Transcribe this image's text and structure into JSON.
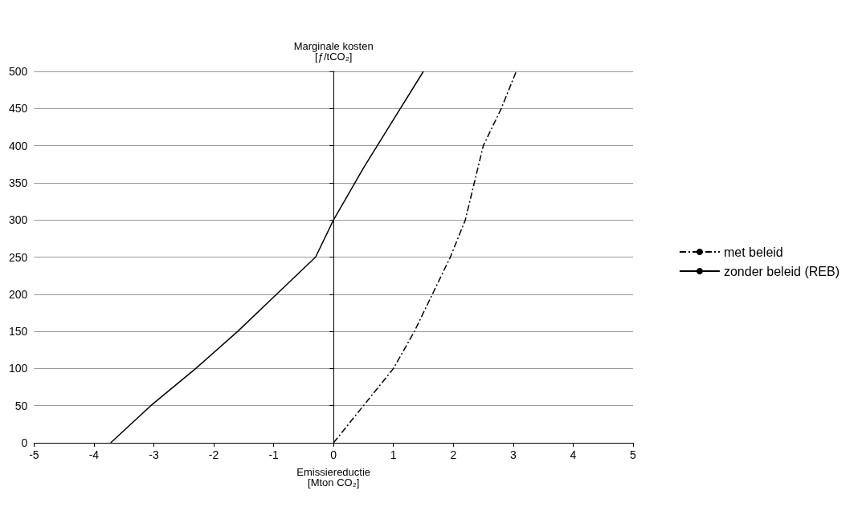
{
  "chart_data": {
    "type": "line",
    "xlabel": "Emissiereductie\n[Mton CO₂]",
    "ylabel": "Marginale kosten\n[ƒ/tCO₂]",
    "xlim": [
      -5,
      5
    ],
    "xticks": [
      -5,
      -4,
      -3,
      -2,
      -1,
      0,
      1,
      2,
      3,
      4,
      5
    ],
    "ylim": [
      0,
      500
    ],
    "yticks": [
      0,
      50,
      100,
      150,
      200,
      250,
      300,
      350,
      400,
      450,
      500
    ],
    "grid": "y",
    "legend": "right",
    "marker": "none",
    "series": [
      {
        "name": "met beleid",
        "color": "#000000",
        "line_style": "dashed",
        "x": [
          0,
          0.5,
          1,
          1.35,
          1.65,
          1.95,
          2.2,
          2.5,
          2.8,
          3.05
        ],
        "values": [
          0,
          50,
          100,
          150,
          200,
          250,
          300,
          400,
          450,
          500
        ]
      },
      {
        "name": "zonder beleid (REB)",
        "color": "#000000",
        "line_style": "solid",
        "x": [
          -3.72,
          -3.05,
          -2.3,
          -1.6,
          -0.95,
          -0.3,
          0,
          0.5,
          1,
          1.5
        ],
        "values": [
          0,
          50,
          100,
          150,
          200,
          250,
          300,
          370,
          435,
          500
        ]
      }
    ]
  }
}
